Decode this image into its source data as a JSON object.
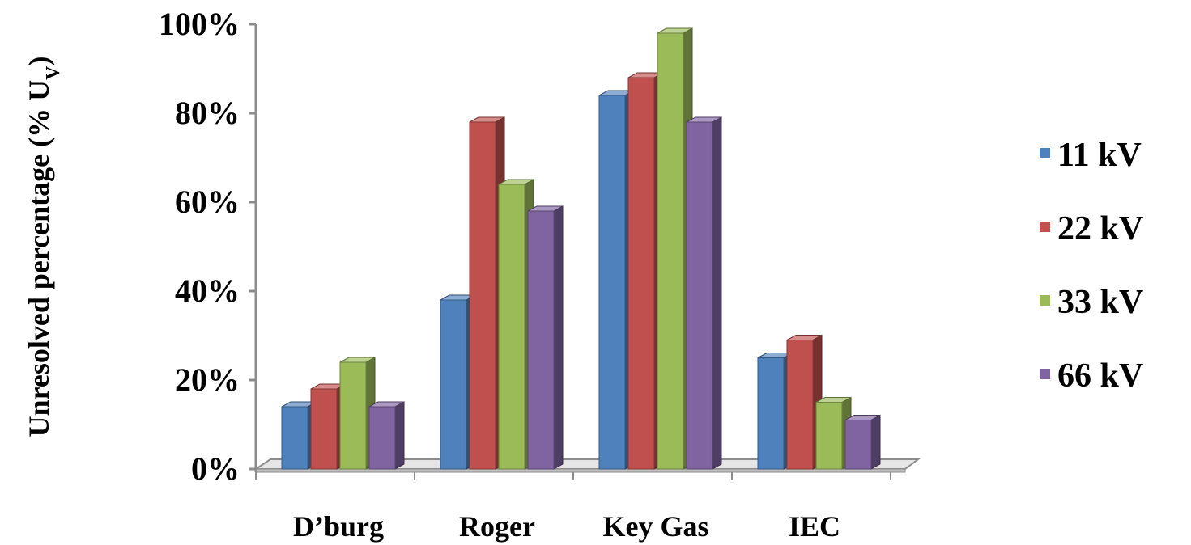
{
  "chart_data": {
    "type": "bar",
    "style": "3d-clustered-column",
    "title": "",
    "xlabel": "",
    "ylabel": "Unresolved percentage (% U",
    "ylabel_subscript": "V",
    "ylabel_suffix": ")",
    "ylim": [
      0,
      100
    ],
    "yticks": [
      0,
      20,
      40,
      60,
      80,
      100
    ],
    "ytick_labels": [
      "0%",
      "20%",
      "40%",
      "60%",
      "80%",
      "100%"
    ],
    "categories": [
      "D’burg",
      "Roger",
      "Key Gas",
      "IEC"
    ],
    "series": [
      {
        "name": "11 kV",
        "color": "#4F81BD",
        "values": [
          14,
          38,
          84,
          25
        ]
      },
      {
        "name": "22 kV",
        "color": "#C0504D",
        "values": [
          18,
          78,
          88,
          29
        ]
      },
      {
        "name": "33 kV",
        "color": "#9BBB59",
        "values": [
          24,
          64,
          98,
          15
        ]
      },
      {
        "name": "66 kV",
        "color": "#8064A2",
        "values": [
          14,
          58,
          78,
          11
        ]
      }
    ],
    "legend_position": "right",
    "grid": false
  }
}
